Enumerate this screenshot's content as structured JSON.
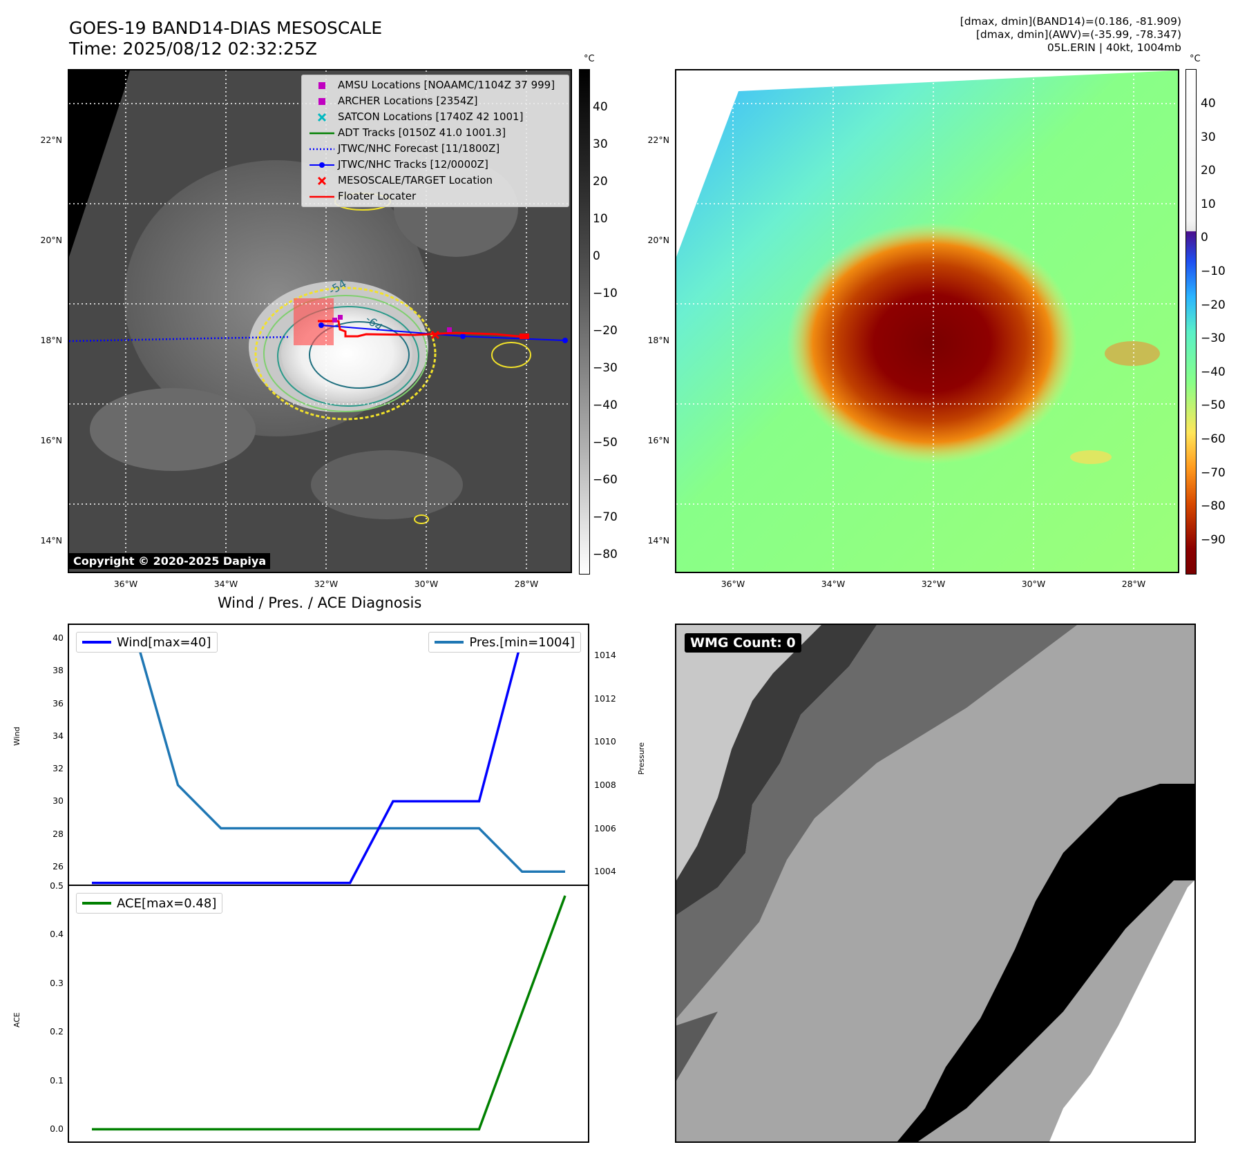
{
  "header": {
    "title_line1": "GOES-19 BAND14-DIAS MESOSCALE",
    "title_line2": "Time: 2025/08/12 02:32:25Z",
    "info_line1": "[dmax, dmin](BAND14)=(0.186, -81.909)",
    "info_line2": "[dmax, dmin](AWV)=(-35.99, -78.347)",
    "info_line3": "05L.ERIN | 40kt, 1004mb"
  },
  "map_axes": {
    "lat_ticks": [
      "22°N",
      "20°N",
      "18°N",
      "16°N",
      "14°N"
    ],
    "lon_ticks": [
      "36°W",
      "34°W",
      "32°W",
      "30°W",
      "28°W"
    ]
  },
  "ir_panel": {
    "copyright": "Copyright © 2020-2025 Dapiya",
    "contour_labels": [
      "-54",
      "-64"
    ],
    "colorbar_unit": "°C",
    "colorbar_ticks": [
      "40",
      "30",
      "20",
      "10",
      "0",
      "−10",
      "−20",
      "−30",
      "−40",
      "−50",
      "−60",
      "−70",
      "−80"
    ],
    "legend": [
      {
        "label": "AMSU Locations [NOAAMC/1104Z 37 999]",
        "symbol": "square",
        "color": "#c000c0"
      },
      {
        "label": "ARCHER Locations [2354Z]",
        "symbol": "square",
        "color": "#c000c0"
      },
      {
        "label": "SATCON Locations [1740Z 42 1001]",
        "symbol": "x",
        "color": "#00b8c0"
      },
      {
        "label": "ADT Tracks [0150Z 41.0 1001.3]",
        "symbol": "line",
        "color": "#008000"
      },
      {
        "label": "JTWC/NHC Forecast [11/1800Z]",
        "symbol": "dotted",
        "color": "#0000ff"
      },
      {
        "label": "JTWC/NHC Tracks [12/0000Z]",
        "symbol": "line-dot",
        "color": "#0000ff"
      },
      {
        "label": "MESOSCALE/TARGET Location",
        "symbol": "x",
        "color": "#ff0000"
      },
      {
        "label": "Floater Locater",
        "symbol": "line",
        "color": "#ff0000"
      }
    ]
  },
  "awv_panel": {
    "colorbar_unit": "°C",
    "colorbar_ticks": [
      "40",
      "30",
      "20",
      "10",
      "0",
      "−10",
      "−20",
      "−30",
      "−40",
      "−50",
      "−60",
      "−70",
      "−80",
      "−90"
    ]
  },
  "diag": {
    "title": "Wind / Pres. / ACE Diagnosis",
    "wind_ylabel": "Wind",
    "pres_ylabel": "Pressure",
    "ace_ylabel": "ACE",
    "wind_legend": "Wind[max=40]",
    "pres_legend": "Pres.[min=1004]",
    "ace_legend": "ACE[max=0.48]",
    "wind_ticks": [
      "40",
      "38",
      "36",
      "34",
      "32",
      "30",
      "28",
      "26"
    ],
    "pres_ticks": [
      "1014",
      "1012",
      "1010",
      "1008",
      "1006",
      "1004"
    ],
    "ace_ticks": [
      "0.5",
      "0.4",
      "0.3",
      "0.2",
      "0.1",
      "0.0"
    ]
  },
  "wmg": {
    "label": "WMG Count: 0"
  },
  "chart_data": [
    {
      "type": "line",
      "title": "Wind / Pres. / ACE Diagnosis",
      "x": [
        0,
        1,
        2,
        3,
        4,
        5,
        6,
        7,
        8,
        9,
        10,
        11
      ],
      "series": [
        {
          "name": "Wind[max=40]",
          "axis": "Wind",
          "color": "#0000ff",
          "values": [
            25,
            25,
            25,
            25,
            25,
            25,
            25,
            30,
            30,
            30,
            40,
            40
          ]
        },
        {
          "name": "Pres.[min=1004]",
          "axis": "Pressure",
          "color": "#1f77b4",
          "values": [
            1015,
            1015,
            1008,
            1006,
            1006,
            1006,
            1006,
            1006,
            1006,
            1006,
            1004,
            1004
          ]
        }
      ],
      "ylim_wind": [
        24.9,
        40.8
      ],
      "ylim_pres": [
        1003.4,
        1015.4
      ]
    },
    {
      "type": "line",
      "x": [
        0,
        1,
        2,
        3,
        4,
        5,
        6,
        7,
        8,
        9,
        10,
        11
      ],
      "series": [
        {
          "name": "ACE[max=0.48]",
          "axis": "ACE",
          "color": "#008000",
          "values": [
            0,
            0,
            0,
            0,
            0,
            0,
            0,
            0,
            0,
            0,
            0.24,
            0.48
          ]
        }
      ],
      "ylim": [
        -0.025,
        0.5
      ]
    }
  ]
}
